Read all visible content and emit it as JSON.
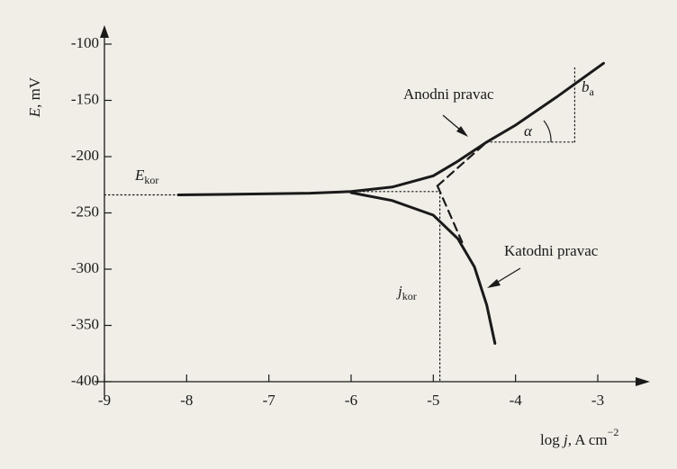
{
  "chart_data": {
    "type": "line",
    "xlim": [
      -9,
      -3
    ],
    "ylim": [
      -400,
      -100
    ],
    "xticks": [
      -9,
      -8,
      -7,
      -6,
      -5,
      -4,
      -3
    ],
    "yticks": [
      -100,
      -150,
      -200,
      -250,
      -300,
      -350,
      -400
    ],
    "color": "#1a1a1a",
    "series": [
      {
        "style": "solid",
        "x": [
          -8.1,
          -7,
          -6.5,
          -6,
          -5.5,
          -5,
          -4.7,
          -4.35,
          -4,
          -3.5,
          -2.93
        ],
        "values": [
          -234,
          -233,
          -232.5,
          -231,
          -227,
          -217,
          -204,
          -187,
          -172,
          -147,
          -117
        ]
      },
      {
        "style": "solid",
        "x": [
          -6,
          -5.5,
          -5,
          -4.7,
          -4.5,
          -4.35,
          -4.25
        ],
        "values": [
          -232,
          -239,
          -252,
          -273,
          -298,
          -332,
          -366
        ]
      },
      {
        "style": "dashed",
        "x": [
          -4.95,
          -4.35
        ],
        "values": [
          -226,
          -187
        ]
      },
      {
        "style": "dashed",
        "x": [
          -4.95,
          -4.65
        ],
        "values": [
          -226,
          -276
        ]
      },
      {
        "style": "dotted",
        "x": [
          -9,
          -8.1
        ],
        "values": [
          -234,
          -234
        ]
      },
      {
        "style": "dotted",
        "x": [
          -6,
          -4.95
        ],
        "values": [
          -231,
          -231
        ]
      },
      {
        "style": "dotted",
        "x": [
          -4.92,
          -4.92
        ],
        "values": [
          -232,
          -400
        ]
      },
      {
        "style": "dotted",
        "x": [
          -4.35,
          -3.28
        ],
        "values": [
          -187,
          -187
        ]
      },
      {
        "style": "dotted",
        "x": [
          -3.28,
          -3.28
        ],
        "values": [
          -187,
          -120
        ]
      }
    ],
    "ylabel": {
      "symbol": "E",
      "unit": ", mV"
    },
    "xlabel": {
      "prefix": "log ",
      "symbol": "j",
      "unit": ", A cm",
      "power": "−2"
    },
    "annotations": {
      "anodic": "Anodni pravac",
      "cathodic": "Katodni pravac",
      "e_kor": {
        "symbol": "E",
        "sub": "kor"
      },
      "j_kor": {
        "symbol": "j",
        "sub": "kor"
      },
      "b_a": {
        "symbol": "b",
        "sub": "a"
      },
      "alpha": "α"
    }
  }
}
